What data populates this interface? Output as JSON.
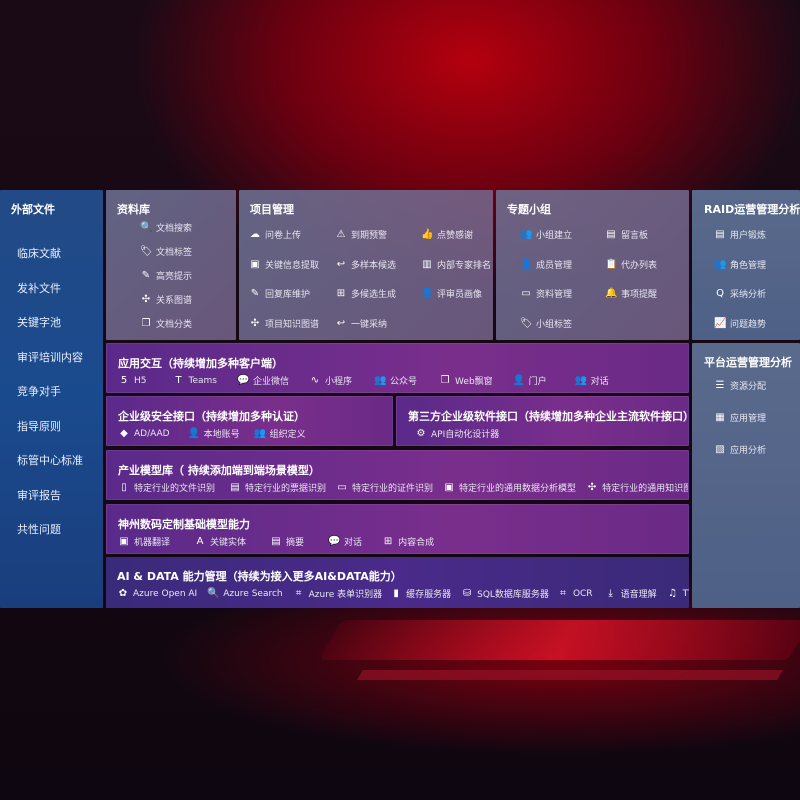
{
  "external": {
    "title": "外部文件",
    "items": [
      "临床文献",
      "发补文件",
      "关键字池",
      "审评培训内容",
      "竞争对手",
      "指导原则",
      "标管中心标准",
      "审评报告",
      "共性问题"
    ]
  },
  "library": {
    "title": "资料库",
    "items": [
      {
        "icon": "doc-search-icon",
        "glyph": "🔍",
        "label": "文档搜索"
      },
      {
        "icon": "tag-icon",
        "glyph": "🏷",
        "label": "文档标签"
      },
      {
        "icon": "pen-icon",
        "glyph": "✎",
        "label": "高亮提示"
      },
      {
        "icon": "graph-icon",
        "glyph": "✣",
        "label": "关系图谱"
      },
      {
        "icon": "doc-copy-icon",
        "glyph": "❐",
        "label": "文档分类"
      }
    ]
  },
  "project": {
    "title": "项目管理",
    "items": [
      {
        "icon": "cloud-upload-icon",
        "glyph": "☁",
        "label": "问卷上传"
      },
      {
        "icon": "alarm-icon",
        "glyph": "⚠",
        "label": "到期预警"
      },
      {
        "icon": "thumbs-up-icon",
        "glyph": "👍",
        "label": "点赞感谢"
      },
      {
        "icon": "window-icon",
        "glyph": "▣",
        "label": "关键信息提取"
      },
      {
        "icon": "reply-icon",
        "glyph": "↩",
        "label": "多样本候选"
      },
      {
        "icon": "rank-icon",
        "glyph": "▥",
        "label": "内部专家排名"
      },
      {
        "icon": "edit-icon",
        "glyph": "✎",
        "label": "回复库维护"
      },
      {
        "icon": "puzzle-icon",
        "glyph": "⊞",
        "label": "多候选生成"
      },
      {
        "icon": "user-icon",
        "glyph": "👤",
        "label": "评审员画像"
      },
      {
        "icon": "graph-icon",
        "glyph": "✣",
        "label": "项目知识图谱"
      },
      {
        "icon": "reply-icon",
        "glyph": "↩",
        "label": "一键采纳"
      }
    ]
  },
  "group": {
    "title": "专题小组",
    "items": [
      {
        "icon": "users-icon",
        "glyph": "👥",
        "label": "小组建立"
      },
      {
        "icon": "bbs-icon",
        "glyph": "▤",
        "label": "留言板"
      },
      {
        "icon": "user-add-icon",
        "glyph": "👤",
        "label": "成员管理"
      },
      {
        "icon": "clipboard-icon",
        "glyph": "📋",
        "label": "代办列表"
      },
      {
        "icon": "folder-icon",
        "glyph": "▭",
        "label": "资料管理"
      },
      {
        "icon": "bell-icon",
        "glyph": "🔔",
        "label": "事项提醒"
      },
      {
        "icon": "tag-icon",
        "glyph": "🏷",
        "label": "小组标签"
      }
    ]
  },
  "raid": {
    "title": "RAID运营管理分析",
    "items": [
      {
        "icon": "id-card-icon",
        "glyph": "▤",
        "label": "用户锻炼"
      },
      {
        "icon": "users-icon",
        "glyph": "👥",
        "label": "角色管理"
      },
      {
        "icon": "qa-icon",
        "glyph": "Q",
        "label": "采纳分析"
      },
      {
        "icon": "trend-icon",
        "glyph": "📈",
        "label": "问题趋势"
      }
    ]
  },
  "platform": {
    "title": "平台运营管理分析",
    "items": [
      {
        "icon": "checklist-icon",
        "glyph": "☰",
        "label": "资源分配"
      },
      {
        "icon": "apps-icon",
        "glyph": "▦",
        "label": "应用管理"
      },
      {
        "icon": "analytics-icon",
        "glyph": "▧",
        "label": "应用分析"
      }
    ]
  },
  "app": {
    "title": "应用交互（持续增加多种客户端）",
    "items": [
      {
        "icon": "html5-icon",
        "glyph": "5",
        "label": "H5"
      },
      {
        "icon": "teams-icon",
        "glyph": "T",
        "label": "Teams"
      },
      {
        "icon": "wechat-icon",
        "glyph": "💬",
        "label": "企业微信"
      },
      {
        "icon": "miniprogram-icon",
        "glyph": "∿",
        "label": "小程序"
      },
      {
        "icon": "users-icon",
        "glyph": "👥",
        "label": "公众号"
      },
      {
        "icon": "window-icon",
        "glyph": "❐",
        "label": "Web飘窗"
      },
      {
        "icon": "portal-icon",
        "glyph": "👤",
        "label": "门户"
      },
      {
        "icon": "chat-users-icon",
        "glyph": "👥",
        "label": "对话"
      }
    ]
  },
  "security": {
    "title": "企业级安全接口（持续增加多种认证）",
    "items": [
      {
        "icon": "azure-ad-icon",
        "glyph": "◆",
        "label": "AD/AAD"
      },
      {
        "icon": "local-user-icon",
        "glyph": "👤",
        "label": "本地账号"
      },
      {
        "icon": "org-icon",
        "glyph": "👥",
        "label": "组织定义"
      }
    ]
  },
  "third": {
    "title": "第三方企业级软件接口（持续增加多种企业主流软件接口）",
    "items": [
      {
        "icon": "gear-icon",
        "glyph": "⚙",
        "label": "API自动化设计器"
      }
    ]
  },
  "industry": {
    "title": "产业模型库（ 持续添加端到端场景模型）",
    "items": [
      {
        "icon": "doc-icon",
        "glyph": "▯",
        "label": "特定行业的文件识别"
      },
      {
        "icon": "receipt-icon",
        "glyph": "▤",
        "label": "特定行业的票据识别"
      },
      {
        "icon": "id-card-icon",
        "glyph": "▭",
        "label": "特定行业的证件识别"
      },
      {
        "icon": "chart-icon",
        "glyph": "▣",
        "label": "特定行业的通用数据分析模型"
      },
      {
        "icon": "graph-icon",
        "glyph": "✣",
        "label": "特定行业的通用知识图谱模型"
      }
    ]
  },
  "base": {
    "title": "神州数码定制基础模型能力",
    "items": [
      {
        "icon": "translate-icon",
        "glyph": "▣",
        "label": "机器翻译"
      },
      {
        "icon": "entity-icon",
        "glyph": "A",
        "label": "关键实体"
      },
      {
        "icon": "summary-icon",
        "glyph": "▤",
        "label": "摘要"
      },
      {
        "icon": "chat-icon",
        "glyph": "💬",
        "label": "对话"
      },
      {
        "icon": "compose-icon",
        "glyph": "⊞",
        "label": "内容合成"
      }
    ]
  },
  "ai": {
    "title": "AI & DATA 能力管理（持续为接入更多AI&DATA能力）",
    "items": [
      {
        "icon": "openai-icon",
        "glyph": "✿",
        "label": "Azure Open AI"
      },
      {
        "icon": "search-doc-icon",
        "glyph": "🔍",
        "label": "Azure Search"
      },
      {
        "icon": "form-recognizer-icon",
        "glyph": "⌗",
        "label": "Azure 表单识别器"
      },
      {
        "icon": "cache-server-icon",
        "glyph": "▮",
        "label": "缓存服务器"
      },
      {
        "icon": "sql-database-icon",
        "glyph": "⛁",
        "label": "SQL数据库服务器"
      },
      {
        "icon": "ocr-icon",
        "glyph": "⌗",
        "label": "OCR"
      },
      {
        "icon": "speech-icon",
        "glyph": "⤓",
        "label": "语音理解"
      },
      {
        "icon": "tts-icon",
        "glyph": "♫",
        "label": "TTS"
      }
    ]
  }
}
